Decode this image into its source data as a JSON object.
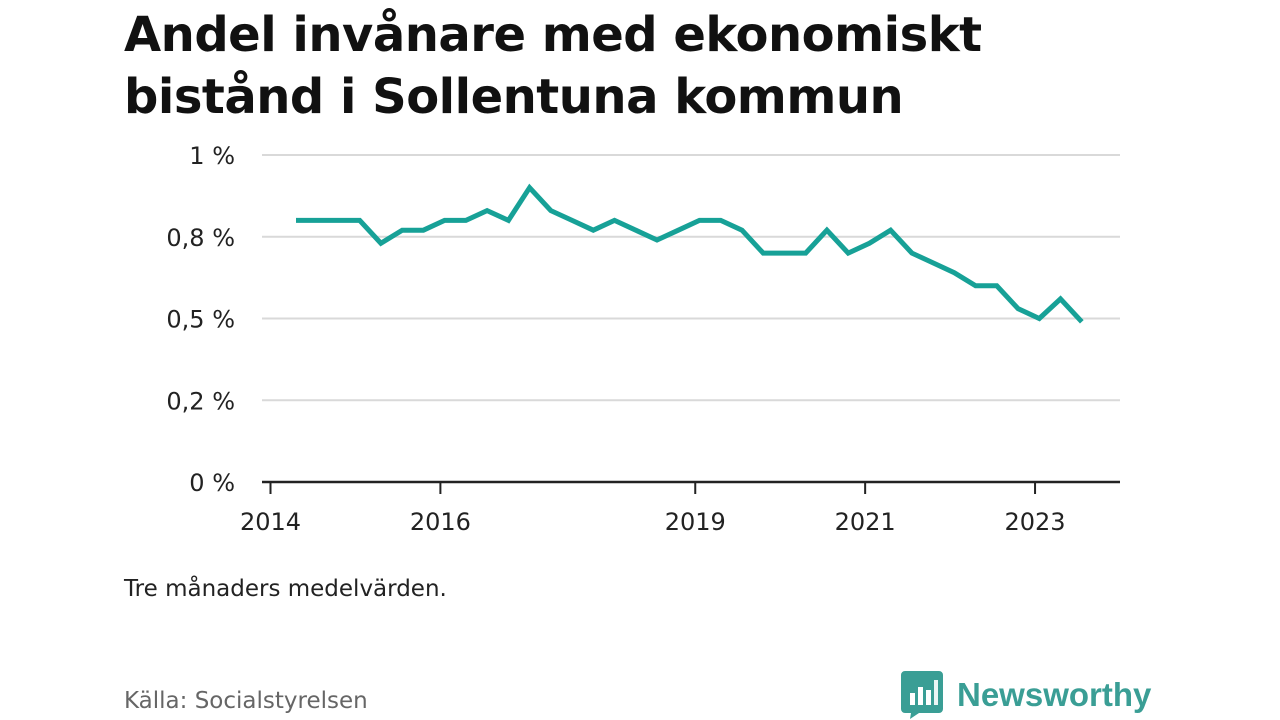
{
  "title": "Andel invånare med ekonomiskt bistånd i Sollentuna kommun",
  "note": "Tre månaders medelvärden.",
  "source": "Källa: Socialstyrelsen",
  "brand": {
    "name": "Newsworthy",
    "icon": "newsworthy-bar-chart-logo-icon",
    "color": "#3a9e95"
  },
  "colors": {
    "line": "#17a197",
    "grid": "#d9d9d9",
    "axis": "#222222",
    "text": "#222222"
  },
  "chart_data": {
    "type": "line",
    "title": "Andel invånare med ekonomiskt bistånd i Sollentuna kommun",
    "xlabel": "",
    "ylabel": "",
    "grid": true,
    "xlim": [
      2013.9,
      2024.0
    ],
    "ylim": [
      0,
      1.0
    ],
    "x_ticks": [
      {
        "value": 2014,
        "label": "2014"
      },
      {
        "value": 2016,
        "label": "2016"
      },
      {
        "value": 2019,
        "label": "2019"
      },
      {
        "value": 2021,
        "label": "2021"
      },
      {
        "value": 2023,
        "label": "2023"
      }
    ],
    "y_ticks": [
      {
        "value": 0,
        "label": "0 %"
      },
      {
        "value": 0.25,
        "label": "0,2 %"
      },
      {
        "value": 0.5,
        "label": "0,5 %"
      },
      {
        "value": 0.75,
        "label": "0,8 %"
      },
      {
        "value": 1.0,
        "label": "1 %"
      }
    ],
    "series": [
      {
        "x": [
          2014.3,
          2014.55,
          2014.8,
          2015.05,
          2015.3,
          2015.55,
          2015.8,
          2016.05,
          2016.3,
          2016.55,
          2016.8,
          2017.05,
          2017.3,
          2017.55,
          2017.8,
          2018.05,
          2018.3,
          2018.55,
          2018.8,
          2019.05,
          2019.3,
          2019.55,
          2019.8,
          2020.05,
          2020.3,
          2020.55,
          2020.8,
          2021.05,
          2021.3,
          2021.55,
          2021.8,
          2022.05,
          2022.3,
          2022.55,
          2022.8,
          2023.05,
          2023.3,
          2023.55
        ],
        "values": [
          0.8,
          0.8,
          0.8,
          0.8,
          0.73,
          0.77,
          0.77,
          0.8,
          0.8,
          0.83,
          0.8,
          0.9,
          0.83,
          0.8,
          0.77,
          0.8,
          0.77,
          0.74,
          0.77,
          0.8,
          0.8,
          0.77,
          0.7,
          0.7,
          0.7,
          0.77,
          0.7,
          0.73,
          0.77,
          0.7,
          0.67,
          0.64,
          0.6,
          0.6,
          0.53,
          0.5,
          0.56,
          0.49
        ]
      }
    ]
  }
}
